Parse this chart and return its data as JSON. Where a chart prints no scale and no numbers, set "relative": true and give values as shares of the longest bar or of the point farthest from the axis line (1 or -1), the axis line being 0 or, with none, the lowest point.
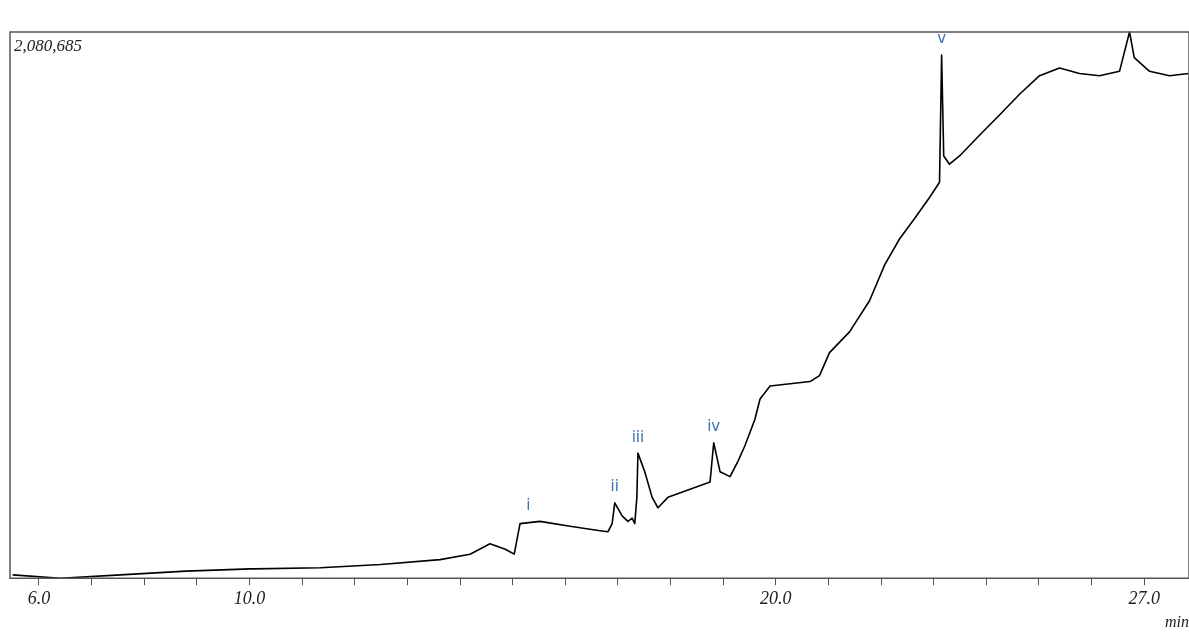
{
  "chart_data": {
    "type": "line",
    "relative": true,
    "xlabel": "min",
    "grid": false,
    "legend": false,
    "marker": "none",
    "line_style": "solid",
    "tick_labels": "x",
    "xlim": [
      5.45,
      27.85
    ],
    "xticks": [
      {
        "value": 6,
        "label": "6.0"
      },
      {
        "value": 7,
        "label": null
      },
      {
        "value": 8,
        "label": null
      },
      {
        "value": 9,
        "label": null
      },
      {
        "value": 10,
        "label": "10.0"
      },
      {
        "value": 11,
        "label": null
      },
      {
        "value": 12,
        "label": null
      },
      {
        "value": 13,
        "label": null
      },
      {
        "value": 14,
        "label": null
      },
      {
        "value": 15,
        "label": null
      },
      {
        "value": 16,
        "label": null
      },
      {
        "value": 17,
        "label": null
      },
      {
        "value": 18,
        "label": null
      },
      {
        "value": 19,
        "label": null
      },
      {
        "value": 20,
        "label": "20.0"
      },
      {
        "value": 21,
        "label": null
      },
      {
        "value": 22,
        "label": null
      },
      {
        "value": 23,
        "label": null
      },
      {
        "value": 24,
        "label": null
      },
      {
        "value": 25,
        "label": null
      },
      {
        "value": 26,
        "label": null
      },
      {
        "value": 27,
        "label": "27.0"
      }
    ],
    "series": [
      {
        "color": "#000000",
        "x": [
          5.5,
          6.41,
          7.55,
          8.79,
          10.02,
          11.35,
          12.49,
          13.62,
          14.19,
          14.57,
          14.86,
          15.03,
          15.14,
          15.52,
          16.09,
          16.66,
          16.81,
          16.89,
          16.94,
          17.08,
          17.19,
          17.27,
          17.32,
          17.36,
          17.38,
          17.51,
          17.65,
          17.76,
          17.95,
          18.37,
          18.75,
          18.82,
          18.94,
          19.13,
          19.28,
          19.41,
          19.6,
          19.7,
          19.89,
          20.27,
          20.65,
          20.83,
          21.02,
          21.4,
          21.78,
          22.07,
          22.35,
          22.64,
          22.92,
          23.11,
          23.15,
          23.19,
          23.3,
          23.49,
          23.87,
          24.25,
          24.63,
          25.01,
          25.39,
          25.77,
          26.15,
          26.53,
          26.72,
          26.81,
          27.1,
          27.48,
          27.84
        ],
        "values": [
          0.006,
          0,
          0.006,
          0.013,
          0.017,
          0.019,
          0.025,
          0.034,
          0.044,
          0.063,
          0.053,
          0.044,
          0.1,
          0.104,
          0.095,
          0.087,
          0.085,
          0.1,
          0.138,
          0.114,
          0.104,
          0.11,
          0.1,
          0.148,
          0.229,
          0.195,
          0.148,
          0.129,
          0.148,
          0.163,
          0.176,
          0.248,
          0.195,
          0.186,
          0.214,
          0.242,
          0.29,
          0.328,
          0.352,
          0.356,
          0.36,
          0.371,
          0.413,
          0.451,
          0.508,
          0.574,
          0.621,
          0.659,
          0.697,
          0.725,
          0.958,
          0.773,
          0.758,
          0.773,
          0.811,
          0.848,
          0.886,
          0.92,
          0.934,
          0.924,
          0.92,
          0.928,
          1,
          0.953,
          0.928,
          0.92,
          0.924
        ]
      }
    ],
    "annotations": [
      "2,080,685",
      {
        "text": "i",
        "x": 15.3,
        "y": 0.104
      },
      {
        "text": "ii",
        "x": 16.94,
        "y": 0.138
      },
      {
        "text": "iii",
        "x": 17.38,
        "y": 0.229
      },
      {
        "text": "iv",
        "x": 18.82,
        "y": 0.248
      },
      {
        "text": "v",
        "x": 23.15,
        "y": 0.958
      }
    ]
  }
}
